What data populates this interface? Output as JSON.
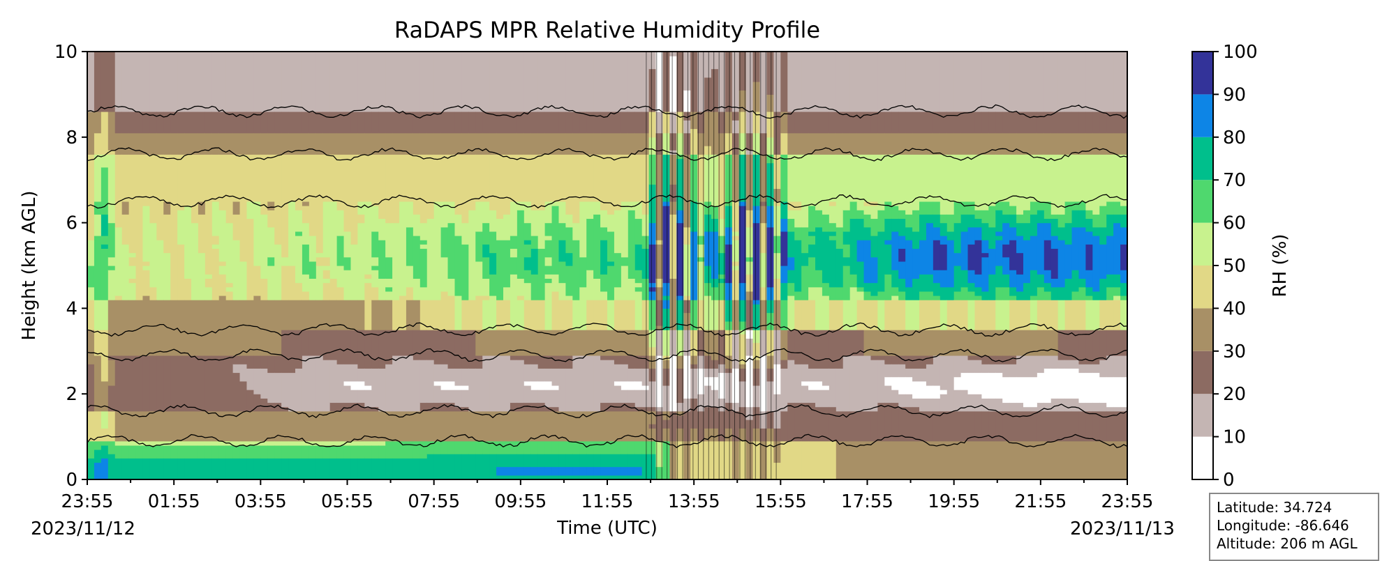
{
  "chart_data": {
    "type": "heatmap",
    "title": "RaDAPS MPR Relative Humidity Profile",
    "xlabel": "Time (UTC)",
    "ylabel": "Height (km AGL)",
    "x_tick_labels": [
      "23:55",
      "01:55",
      "03:55",
      "05:55",
      "07:55",
      "09:55",
      "11:55",
      "13:55",
      "15:55",
      "17:55",
      "19:55",
      "21:55",
      "23:55"
    ],
    "x_start_date": "2023/11/12",
    "x_end_date": "2023/11/13",
    "y_ticks": [
      0,
      2,
      4,
      6,
      8,
      10
    ],
    "ylim": [
      0,
      10
    ],
    "colorbar": {
      "label": "RH (%)",
      "ticks": [
        0,
        10,
        20,
        30,
        40,
        50,
        60,
        70,
        80,
        90,
        100
      ],
      "levels": [
        {
          "from": 0,
          "to": 10,
          "color": "#ffffff"
        },
        {
          "from": 10,
          "to": 20,
          "color": "#c4b5b3"
        },
        {
          "from": 20,
          "to": 30,
          "color": "#8c6b62"
        },
        {
          "from": 30,
          "to": 40,
          "color": "#a89066"
        },
        {
          "from": 40,
          "to": 50,
          "color": "#e1d886"
        },
        {
          "from": 50,
          "to": 60,
          "color": "#c8f28e"
        },
        {
          "from": 60,
          "to": 70,
          "color": "#4fd86e"
        },
        {
          "from": 70,
          "to": 80,
          "color": "#00bf8c"
        },
        {
          "from": 80,
          "to": 90,
          "color": "#0d85e6"
        },
        {
          "from": 90,
          "to": 100,
          "color": "#333399"
        }
      ]
    },
    "layers_approx": [
      {
        "name": "",
        "rh_range": "30-40",
        "height_km": [
          0.0,
          0.6
        ],
        "time": "17:55-23:55"
      },
      {
        "name": "",
        "rh_range": "60-80",
        "height_km": [
          0.0,
          1.0
        ],
        "time": "23:55-12:55"
      },
      {
        "name": "",
        "rh_range": "10-20",
        "height_km": [
          1.5,
          3.0
        ],
        "time": "16:00-23:55"
      },
      {
        "name": "",
        "rh_range": "80-100",
        "height_km": [
          4.5,
          6.5
        ],
        "time": "13:30-23:55"
      },
      {
        "name": "",
        "rh_range": "10-30",
        "height_km": [
          8.0,
          10.0
        ],
        "time": "23:55-23:55"
      }
    ]
  },
  "info": {
    "latitude": "Latitude: 34.724",
    "longitude": "Longitude: -86.646",
    "altitude": "Altitude: 206 m AGL"
  }
}
